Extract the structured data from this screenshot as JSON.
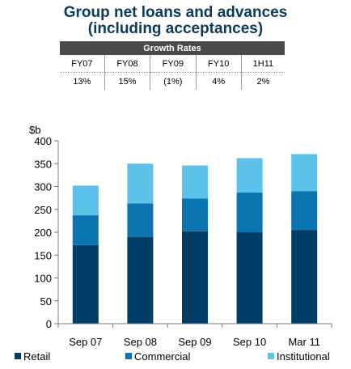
{
  "title": {
    "line1": "Group net loans and advances",
    "line2": "(including acceptances)"
  },
  "growth_table": {
    "header": "Growth Rates",
    "periods": [
      "FY07",
      "FY08",
      "FY09",
      "FY10",
      "1H11"
    ],
    "rates": [
      "13%",
      "15%",
      "(1%)",
      "4%",
      "2%"
    ]
  },
  "colors": {
    "retail": "#003d66",
    "commercial": "#0a75b0",
    "institutional": "#5cc2ea",
    "title": "#0d3a5c",
    "table_header": "#4a4a4a"
  },
  "chart_data": {
    "type": "bar",
    "stacked": true,
    "categories": [
      "Sep 07",
      "Sep 08",
      "Sep 09",
      "Sep 10",
      "Mar 11"
    ],
    "series": [
      {
        "name": "Retail",
        "values": [
          172,
          190,
          202,
          200,
          205
        ]
      },
      {
        "name": "Commercial",
        "values": [
          65,
          73,
          72,
          87,
          85
        ]
      },
      {
        "name": "Institutional",
        "values": [
          65,
          87,
          72,
          75,
          81
        ]
      }
    ],
    "ylabel": "$b",
    "ylim": [
      0,
      400
    ],
    "yticks": [
      0,
      50,
      100,
      150,
      200,
      250,
      300,
      350,
      400
    ],
    "grid": false,
    "legend": "bottom"
  }
}
